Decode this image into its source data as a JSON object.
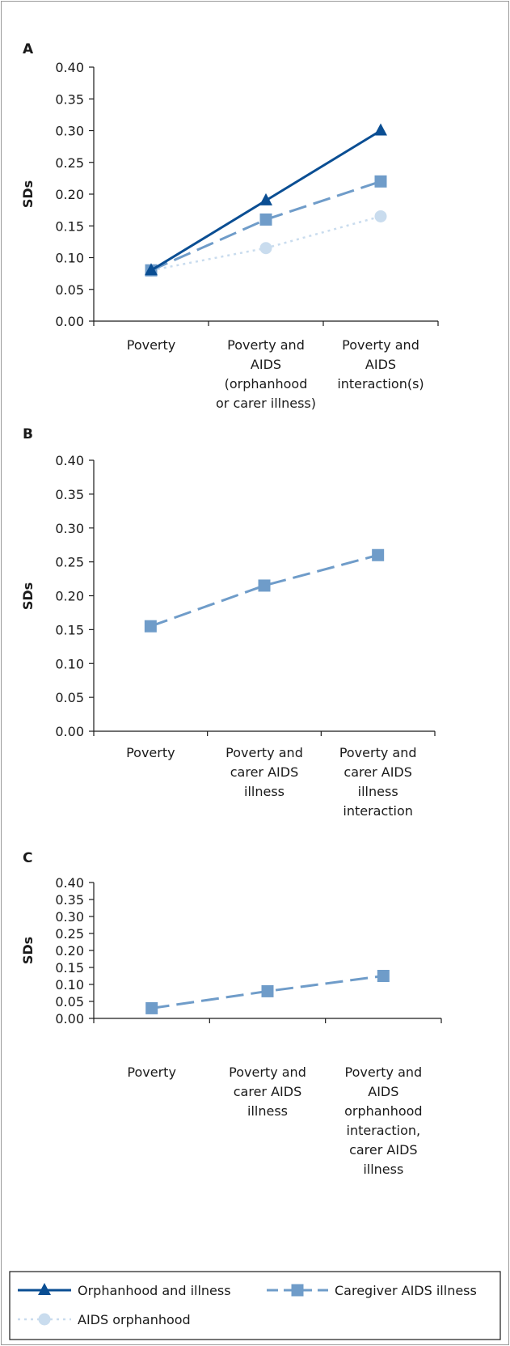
{
  "colors": {
    "orphanhood_and_illness": "#0a4e93",
    "caregiver_aids_illness": "#6f9cc9",
    "aids_orphanhood": "#c9dcee",
    "frame": "#9a9a9a",
    "axis": "#1a1a1a"
  },
  "legend": {
    "items": [
      {
        "label": "Orphanhood and illness",
        "marker": "triangle",
        "style": "solid",
        "color": "#0a4e93"
      },
      {
        "label": "Caregiver AIDS illness",
        "marker": "square",
        "style": "dashed",
        "color": "#6f9cc9"
      },
      {
        "label": "AIDS orphanhood",
        "marker": "circle",
        "style": "dotted",
        "color": "#c9dcee"
      }
    ]
  },
  "chart_data": [
    {
      "type": "line",
      "panel_label": "A",
      "ylabel": "SDs",
      "ylim": [
        0,
        0.4
      ],
      "yticks": [
        "0.00",
        "0.05",
        "0.10",
        "0.15",
        "0.20",
        "0.25",
        "0.30",
        "0.35",
        "0.40"
      ],
      "categories": [
        [
          "Poverty"
        ],
        [
          "Poverty and",
          "AIDS",
          "(orphanhood",
          "or carer illness)"
        ],
        [
          "Poverty and",
          "AIDS",
          "interaction(s)"
        ]
      ],
      "series": [
        {
          "name": "Orphanhood and illness",
          "key": "orphanhood_and_illness",
          "marker": "triangle",
          "style": "solid",
          "values": [
            0.08,
            0.19,
            0.3
          ]
        },
        {
          "name": "Caregiver AIDS illness",
          "key": "caregiver_aids_illness",
          "marker": "square",
          "style": "dashed",
          "values": [
            0.08,
            0.16,
            0.22
          ]
        },
        {
          "name": "AIDS orphanhood",
          "key": "aids_orphanhood",
          "marker": "circle",
          "style": "dotted",
          "values": [
            0.08,
            0.115,
            0.165
          ]
        }
      ]
    },
    {
      "type": "line",
      "panel_label": "B",
      "ylabel": "SDs",
      "ylim": [
        0,
        0.4
      ],
      "yticks": [
        "0.00",
        "0.05",
        "0.10",
        "0.15",
        "0.20",
        "0.25",
        "0.30",
        "0.35",
        "0.40"
      ],
      "categories": [
        [
          "Poverty"
        ],
        [
          "Poverty and",
          "carer AIDS",
          "illness"
        ],
        [
          "Poverty and",
          "carer AIDS",
          "illness",
          "interaction"
        ]
      ],
      "series": [
        {
          "name": "Caregiver AIDS illness",
          "key": "caregiver_aids_illness",
          "marker": "square",
          "style": "dashed",
          "values": [
            0.155,
            0.215,
            0.26
          ]
        }
      ]
    },
    {
      "type": "line",
      "panel_label": "C",
      "ylabel": "SDs",
      "ylim": [
        0,
        0.4
      ],
      "yticks": [
        "0.00",
        "0.05",
        "0.10",
        "0.15",
        "0.20",
        "0.25",
        "0.30",
        "0.35",
        "0.40"
      ],
      "categories": [
        [
          "Poverty"
        ],
        [
          "Poverty and",
          "carer AIDS",
          "illness"
        ],
        [
          "Poverty and",
          "AIDS",
          "orphanhood",
          "interaction,",
          "carer AIDS",
          "illness"
        ]
      ],
      "series": [
        {
          "name": "Caregiver AIDS illness",
          "key": "caregiver_aids_illness",
          "marker": "square",
          "style": "dashed",
          "values": [
            0.03,
            0.08,
            0.125
          ]
        }
      ]
    }
  ]
}
